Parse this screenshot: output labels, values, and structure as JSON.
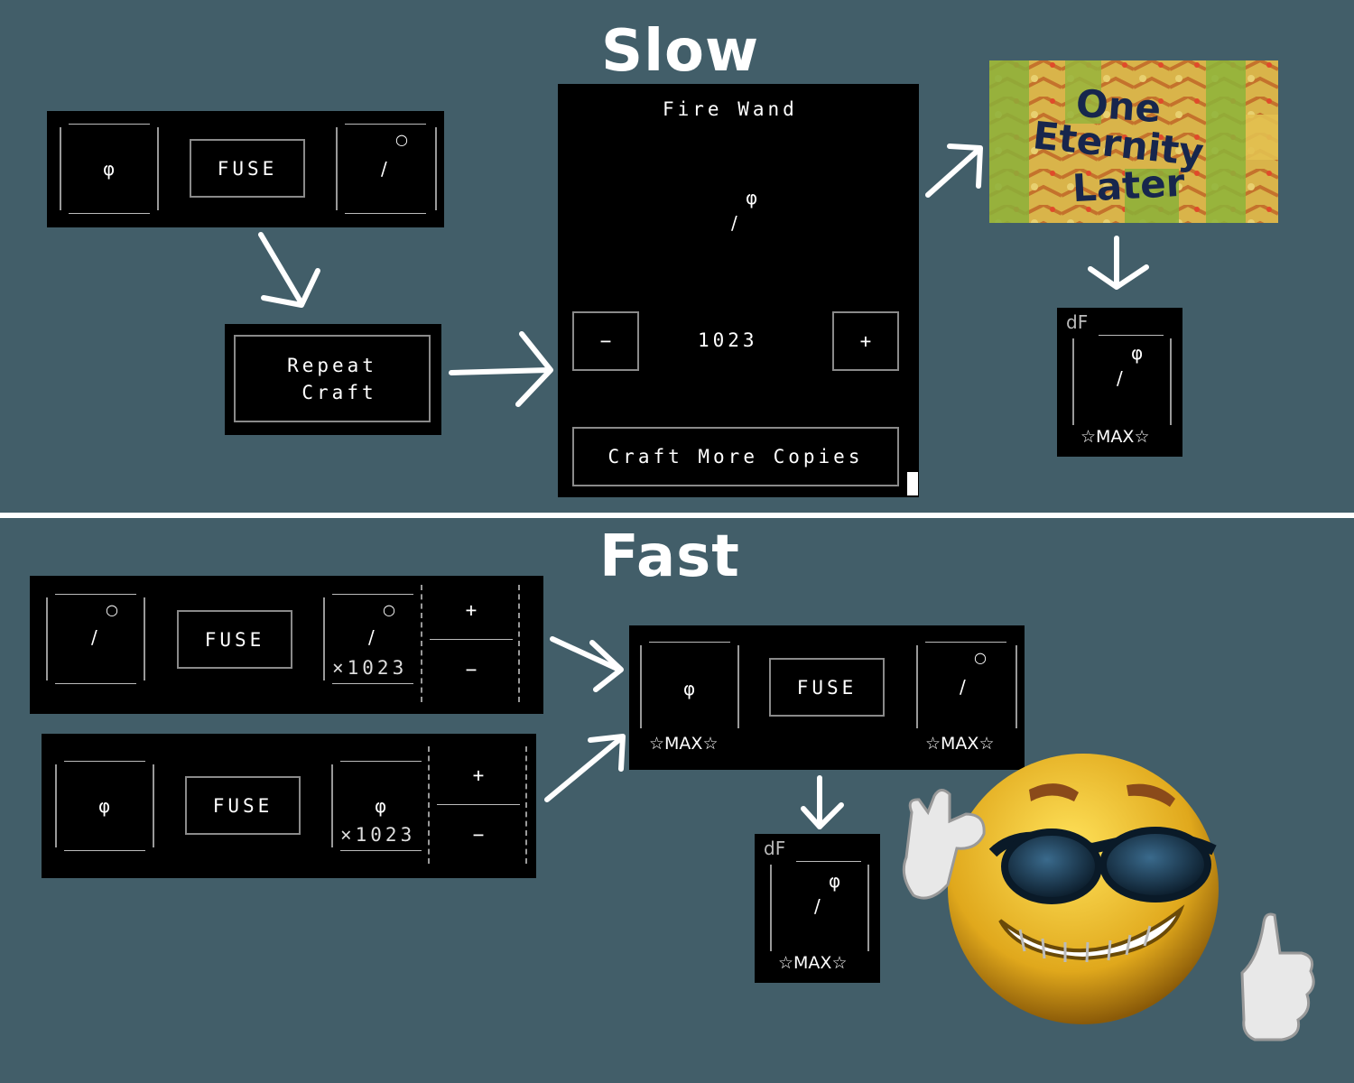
{
  "slow": {
    "heading": "Slow",
    "fuse_panel": {
      "left_slot_glyph": "φ",
      "fuse_label": "FUSE",
      "right_slot_ring": "○",
      "right_slot_glyph": "/"
    },
    "repeat_button": {
      "line1": "Repeat",
      "line2": "Craft"
    },
    "craft_dialog": {
      "title": "Fire Wand",
      "item_glyph_top": "φ",
      "item_glyph_bottom": "/",
      "minus_label": "−",
      "quantity": "1023",
      "plus_label": "+",
      "craft_more_label": "Craft More Copies"
    },
    "time_card": {
      "line1": "One",
      "line2": "Eternity",
      "line3": "Later"
    },
    "result_item": {
      "prefix": "dF",
      "glyph_top": "φ",
      "glyph_bottom": "/",
      "max_label": "☆MAX☆"
    }
  },
  "fast": {
    "heading": "Fast",
    "row1": {
      "left_ring": "○",
      "left_glyph": "/",
      "fuse_label": "FUSE",
      "right_ring": "○",
      "right_glyph": "/",
      "count": "×1023",
      "plus_label": "+",
      "minus_label": "−"
    },
    "row2": {
      "left_glyph": "φ",
      "fuse_label": "FUSE",
      "right_glyph": "φ",
      "count": "×1023",
      "plus_label": "+",
      "minus_label": "−"
    },
    "combined": {
      "left_glyph": "φ",
      "left_max": "☆MAX☆",
      "fuse_label": "FUSE",
      "right_ring": "○",
      "right_glyph": "/",
      "right_max": "☆MAX☆"
    },
    "result_item": {
      "prefix": "dF",
      "glyph_top": "φ",
      "glyph_bottom": "/",
      "max_label": "☆MAX☆"
    }
  },
  "colors": {
    "background": "#425e69",
    "panel": "#000000",
    "text": "#ffffff",
    "border": "#8a8a8a"
  },
  "icons": [
    "arrow-icon",
    "smiley-sunglasses-icon",
    "thumbs-up-icon",
    "ok-hand-icon"
  ]
}
